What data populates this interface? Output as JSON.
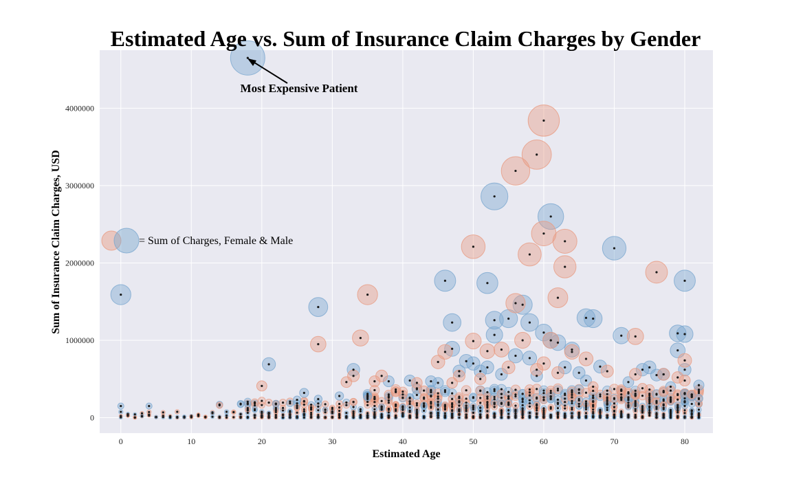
{
  "chart_data": {
    "type": "scatter",
    "title": "Estimated Age vs. Sum of Insurance Claim Charges by Gender",
    "xlabel": "Estimated Age",
    "ylabel": "Sum of Insurance Claim Charges, USD",
    "xlim": [
      -3,
      84
    ],
    "ylim": [
      -200000,
      4750000
    ],
    "xticks": [
      0,
      10,
      20,
      30,
      40,
      50,
      60,
      70,
      80
    ],
    "xtick_labels": [
      "0",
      "10",
      "20",
      "30",
      "40",
      "50",
      "60",
      "70",
      "80"
    ],
    "yticks": [
      0,
      1000000,
      2000000,
      3000000,
      4000000
    ],
    "ytick_labels": [
      "0",
      "1000000",
      "2000000",
      "3000000",
      "4000000"
    ],
    "grid": true,
    "colors": {
      "background": "#e9e9f1",
      "grid": "#ffffff",
      "male": "#7aa8cf",
      "female": "#e89b82",
      "center_dot": "#1a1a1a"
    },
    "legend": {
      "text": "= Sum of Charges, Female & Male",
      "placement": "left-middle"
    },
    "annotation": {
      "text": "Most Expensive Patient",
      "point": [
        18,
        4650000
      ],
      "text_anchor_data": [
        26,
        4250000
      ]
    },
    "series": [
      {
        "name": "Male",
        "color": "#7aa8cf",
        "points": [
          [
            18,
            4650000
          ],
          [
            0,
            1590000
          ],
          [
            28,
            1430000
          ],
          [
            21,
            690000
          ],
          [
            53,
            2860000
          ],
          [
            61,
            2600000
          ],
          [
            70,
            2190000
          ],
          [
            80,
            1770000
          ],
          [
            46,
            1770000
          ],
          [
            52,
            1740000
          ],
          [
            57,
            1460000
          ],
          [
            66,
            1290000
          ],
          [
            67,
            1280000
          ],
          [
            47,
            1230000
          ],
          [
            53,
            1260000
          ],
          [
            58,
            1230000
          ],
          [
            71,
            1060000
          ],
          [
            80,
            1080000
          ],
          [
            79,
            1090000
          ],
          [
            60,
            1100000
          ],
          [
            55,
            1280000
          ],
          [
            61,
            1000000
          ],
          [
            62,
            970000
          ],
          [
            64,
            880000
          ],
          [
            79,
            870000
          ],
          [
            53,
            1070000
          ],
          [
            47,
            890000
          ],
          [
            49,
            730000
          ],
          [
            50,
            700000
          ],
          [
            33,
            620000
          ],
          [
            38,
            470000
          ],
          [
            41,
            480000
          ],
          [
            26,
            320000
          ],
          [
            28,
            240000
          ],
          [
            31,
            280000
          ],
          [
            35,
            280000
          ],
          [
            22,
            180000
          ],
          [
            25,
            230000
          ],
          [
            14,
            170000
          ],
          [
            0,
            150000
          ],
          [
            4,
            150000
          ],
          [
            44,
            470000
          ],
          [
            48,
            600000
          ],
          [
            52,
            650000
          ],
          [
            56,
            800000
          ],
          [
            58,
            770000
          ],
          [
            63,
            650000
          ],
          [
            65,
            580000
          ],
          [
            68,
            660000
          ],
          [
            74,
            620000
          ],
          [
            75,
            650000
          ],
          [
            77,
            560000
          ],
          [
            80,
            620000
          ],
          [
            82,
            420000
          ],
          [
            45,
            450000
          ],
          [
            51,
            600000
          ],
          [
            54,
            560000
          ],
          [
            59,
            540000
          ],
          [
            66,
            480000
          ],
          [
            72,
            460000
          ],
          [
            76,
            550000
          ],
          [
            78,
            400000
          ],
          [
            81,
            270000
          ],
          [
            82,
            250000
          ]
        ]
      },
      {
        "name": "Female",
        "color": "#e89b82",
        "points": [
          [
            60,
            3840000
          ],
          [
            59,
            3400000
          ],
          [
            56,
            3190000
          ],
          [
            60,
            2380000
          ],
          [
            63,
            2280000
          ],
          [
            50,
            2210000
          ],
          [
            58,
            2110000
          ],
          [
            63,
            1950000
          ],
          [
            76,
            1880000
          ],
          [
            35,
            1590000
          ],
          [
            62,
            1550000
          ],
          [
            56,
            1480000
          ],
          [
            28,
            950000
          ],
          [
            34,
            1030000
          ],
          [
            73,
            1050000
          ],
          [
            50,
            990000
          ],
          [
            57,
            1000000
          ],
          [
            61,
            1000000
          ],
          [
            64,
            850000
          ],
          [
            52,
            860000
          ],
          [
            54,
            880000
          ],
          [
            46,
            850000
          ],
          [
            45,
            720000
          ],
          [
            66,
            760000
          ],
          [
            69,
            600000
          ],
          [
            80,
            740000
          ],
          [
            20,
            410000
          ],
          [
            32,
            460000
          ],
          [
            36,
            470000
          ],
          [
            37,
            540000
          ],
          [
            42,
            450000
          ],
          [
            33,
            540000
          ],
          [
            48,
            540000
          ],
          [
            55,
            650000
          ],
          [
            60,
            700000
          ],
          [
            47,
            450000
          ],
          [
            73,
            560000
          ],
          [
            77,
            560000
          ],
          [
            79,
            520000
          ],
          [
            80,
            480000
          ],
          [
            14,
            160000
          ],
          [
            40,
            300000
          ],
          [
            43,
            350000
          ],
          [
            51,
            500000
          ],
          [
            59,
            620000
          ],
          [
            62,
            580000
          ],
          [
            67,
            400000
          ],
          [
            71,
            300000
          ],
          [
            74,
            380000
          ],
          [
            78,
            350000
          ],
          [
            81,
            300000
          ]
        ]
      }
    ]
  }
}
